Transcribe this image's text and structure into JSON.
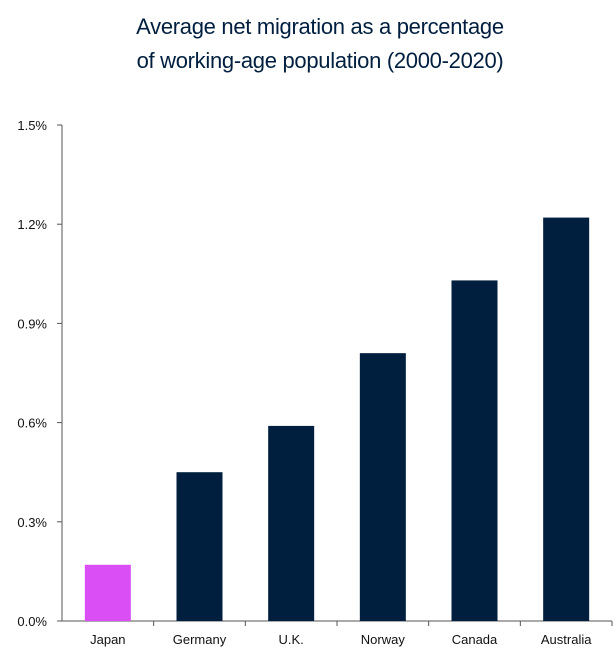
{
  "chart_data": {
    "type": "bar",
    "title_lines": [
      "Average net migration as a percentage",
      "of working-age population (2000-2020)"
    ],
    "categories": [
      "Japan",
      "Germany",
      "U.K.",
      "Norway",
      "Canada",
      "Australia"
    ],
    "values": [
      0.17,
      0.45,
      0.59,
      0.81,
      1.03,
      1.22
    ],
    "bar_colors": [
      "#d94ff5",
      "#001f3f",
      "#001f3f",
      "#001f3f",
      "#001f3f",
      "#001f3f"
    ],
    "yticks": [
      "0.0%",
      "0.3%",
      "0.6%",
      "0.9%",
      "1.2%",
      "1.5%"
    ],
    "ytick_values": [
      0,
      0.3,
      0.6,
      0.9,
      1.2,
      1.5
    ],
    "ylim": [
      0,
      1.5
    ],
    "xlabel": "",
    "ylabel": "",
    "grid": false
  }
}
